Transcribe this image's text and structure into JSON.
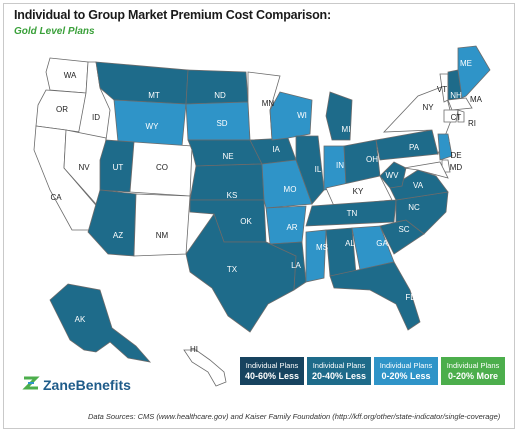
{
  "title": "Individual to Group Market Premium Cost Comparison:",
  "subtitle": "Gold Level Plans",
  "colors": {
    "c40_60": "#17435f",
    "c20_40": "#1e6b8a",
    "c0_20": "#2f94c8",
    "more": "#4cae4c",
    "none": "#ffffff",
    "border": "#6b6b6b"
  },
  "legend": [
    {
      "line1": "Individual Plans",
      "line2": "40-60% Less",
      "color": "#17435f"
    },
    {
      "line1": "Individual Plans",
      "line2": "20-40% Less",
      "color": "#1e6b8a"
    },
    {
      "line1": "Individual Plans",
      "line2": "0-20% Less",
      "color": "#2f94c8"
    },
    {
      "line1": "Individual Plans",
      "line2": "0-20% More",
      "color": "#4cae4c"
    }
  ],
  "brand": {
    "name": "ZaneBenefits",
    "icon": "zane-logo-icon"
  },
  "source": "Data Sources: CMS (www.healthcare.gov) and Kaiser Family Foundation (http://kff.org/other/state-indicator/single-coverage)",
  "states": [
    {
      "abbr": "WA",
      "cat": "none"
    },
    {
      "abbr": "OR",
      "cat": "none"
    },
    {
      "abbr": "CA",
      "cat": "none"
    },
    {
      "abbr": "ID",
      "cat": "none"
    },
    {
      "abbr": "NV",
      "cat": "none"
    },
    {
      "abbr": "MT",
      "cat": "c20_40"
    },
    {
      "abbr": "WY",
      "cat": "c0_20"
    },
    {
      "abbr": "UT",
      "cat": "c20_40"
    },
    {
      "abbr": "AZ",
      "cat": "c20_40"
    },
    {
      "abbr": "CO",
      "cat": "none"
    },
    {
      "abbr": "NM",
      "cat": "none"
    },
    {
      "abbr": "ND",
      "cat": "c20_40"
    },
    {
      "abbr": "SD",
      "cat": "c0_20"
    },
    {
      "abbr": "NE",
      "cat": "c20_40"
    },
    {
      "abbr": "KS",
      "cat": "c20_40"
    },
    {
      "abbr": "OK",
      "cat": "c20_40"
    },
    {
      "abbr": "TX",
      "cat": "c20_40"
    },
    {
      "abbr": "MN",
      "cat": "none"
    },
    {
      "abbr": "IA",
      "cat": "c20_40"
    },
    {
      "abbr": "MO",
      "cat": "c0_20"
    },
    {
      "abbr": "AR",
      "cat": "c0_20"
    },
    {
      "abbr": "LA",
      "cat": "c20_40"
    },
    {
      "abbr": "WI",
      "cat": "c0_20"
    },
    {
      "abbr": "IL",
      "cat": "c20_40"
    },
    {
      "abbr": "MS",
      "cat": "c0_20"
    },
    {
      "abbr": "MI",
      "cat": "c20_40"
    },
    {
      "abbr": "IN",
      "cat": "c0_20"
    },
    {
      "abbr": "OH",
      "cat": "c20_40"
    },
    {
      "abbr": "KY",
      "cat": "none"
    },
    {
      "abbr": "TN",
      "cat": "c20_40"
    },
    {
      "abbr": "AL",
      "cat": "c20_40"
    },
    {
      "abbr": "GA",
      "cat": "c0_20"
    },
    {
      "abbr": "FL",
      "cat": "c20_40"
    },
    {
      "abbr": "SC",
      "cat": "c20_40"
    },
    {
      "abbr": "NC",
      "cat": "c20_40"
    },
    {
      "abbr": "VA",
      "cat": "c20_40"
    },
    {
      "abbr": "WV",
      "cat": "c20_40"
    },
    {
      "abbr": "PA",
      "cat": "c20_40"
    },
    {
      "abbr": "NY",
      "cat": "none"
    },
    {
      "abbr": "VT",
      "cat": "none"
    },
    {
      "abbr": "NH",
      "cat": "c20_40"
    },
    {
      "abbr": "ME",
      "cat": "c0_20"
    },
    {
      "abbr": "MA",
      "cat": "none"
    },
    {
      "abbr": "CT",
      "cat": "none"
    },
    {
      "abbr": "RI",
      "cat": "none"
    },
    {
      "abbr": "NJ",
      "cat": "c0_20"
    },
    {
      "abbr": "DE",
      "cat": "none"
    },
    {
      "abbr": "MD",
      "cat": "none"
    },
    {
      "abbr": "AK",
      "cat": "c20_40"
    },
    {
      "abbr": "HI",
      "cat": "none"
    }
  ]
}
